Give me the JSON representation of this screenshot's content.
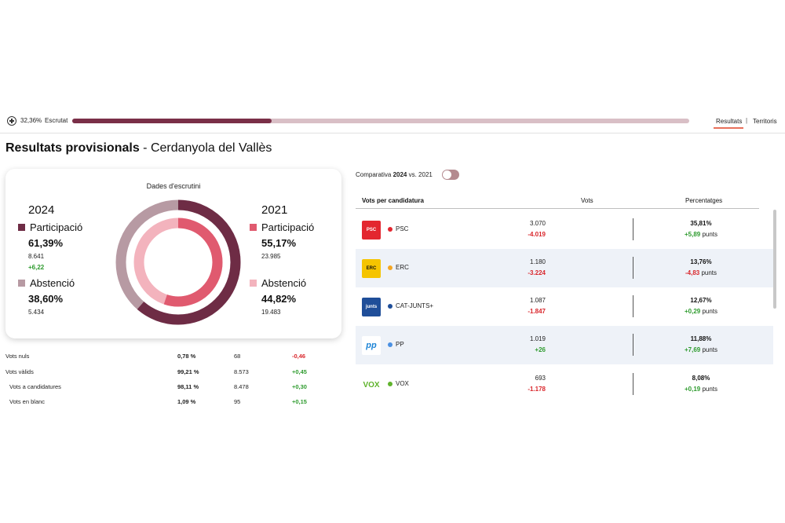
{
  "progress": {
    "percent_label": "32,36%",
    "scrutat_label": "Escrutat",
    "fraction": 0.3236
  },
  "nav": {
    "resultats": "Resultats",
    "separator": "|",
    "territoris": "Territoris"
  },
  "title": {
    "bold": "Resultats provisionals",
    "rest": " - Cerdanyola del Vallès"
  },
  "card": {
    "title": "Dades d'escrutini",
    "y2024": {
      "year": "2024",
      "participacio_label": "Participació",
      "participacio_pct": "61,39%",
      "participacio_num": "8.641",
      "participacio_delta": "+6,22",
      "abstencio_label": "Abstenció",
      "abstencio_pct": "38,60%",
      "abstencio_num": "5.434"
    },
    "y2021": {
      "year": "2021",
      "participacio_label": "Participació",
      "participacio_pct": "55,17%",
      "participacio_num": "23.985",
      "abstencio_label": "Abstenció",
      "abstencio_pct": "44,82%",
      "abstencio_num": "19.483"
    },
    "donut": {
      "outer_participacio": 61.39,
      "inner_participacio": 55.17
    },
    "colors": {
      "p2024": "#6e2c45",
      "a2024": "#b79aa3",
      "p2021": "#e05a6f",
      "a2021": "#f3b3bd"
    }
  },
  "stats": [
    {
      "label": "Vots nuls",
      "pct": "0,78 %",
      "num": "68",
      "delta": "-0,46",
      "sign": "neg"
    },
    {
      "label": "Vots vàlids",
      "pct": "99,21 %",
      "num": "8.573",
      "delta": "+0,45",
      "sign": "pos"
    },
    {
      "label": "Vots a candidatures",
      "pct": "98,11 %",
      "num": "8.478",
      "delta": "+0,30",
      "sign": "pos"
    },
    {
      "label": "Vots en blanc",
      "pct": "1,09 %",
      "num": "95",
      "delta": "+0,15",
      "sign": "pos"
    }
  ],
  "comparativa": {
    "prefix": "Comparativa ",
    "year_a": "2024",
    "middle": " vs. 2021"
  },
  "results_header": {
    "candidatura": "Vots per candidatura",
    "vots": "Vots",
    "percentatges": "Percentatges"
  },
  "results": [
    {
      "party": "PSC",
      "logo": "PSC",
      "logo_color": "#e3262f",
      "dot_color": "#e3262f",
      "vots": "3.070",
      "vots_delta": "-4.019",
      "vots_sign": "neg",
      "pct": "35,81%",
      "pct_delta": "+5,89",
      "pct_sign": "pos",
      "unit": " punts"
    },
    {
      "party": "ERC",
      "logo": "ERC",
      "logo_color": "#f5c400",
      "dot_color": "#f5a623",
      "vots": "1.180",
      "vots_delta": "-3.224",
      "vots_sign": "neg",
      "pct": "13,76%",
      "pct_delta": "-4,83",
      "pct_sign": "neg",
      "unit": " punts"
    },
    {
      "party": "CAT-JUNTS+",
      "logo": "junts",
      "logo_color": "#1f4e99",
      "dot_color": "#1f4e99",
      "vots": "1.087",
      "vots_delta": "-1.847",
      "vots_sign": "neg",
      "pct": "12,67%",
      "pct_delta": "+0,29",
      "pct_sign": "pos",
      "unit": " punts"
    },
    {
      "party": "PP",
      "logo": "pp",
      "logo_color": "#1d84d6",
      "dot_color": "#4a90e2",
      "vots": "1.019",
      "vots_delta": "+26",
      "vots_sign": "pos",
      "pct": "11,88%",
      "pct_delta": "+7,69",
      "pct_sign": "pos",
      "unit": " punts"
    },
    {
      "party": "VOX",
      "logo": "VOX",
      "logo_color": "#5fb32c",
      "dot_color": "#5fb32c",
      "vots": "693",
      "vots_delta": "-1.178",
      "vots_sign": "neg",
      "pct": "8,08%",
      "pct_delta": "+0,19",
      "pct_sign": "pos",
      "unit": " punts"
    }
  ]
}
